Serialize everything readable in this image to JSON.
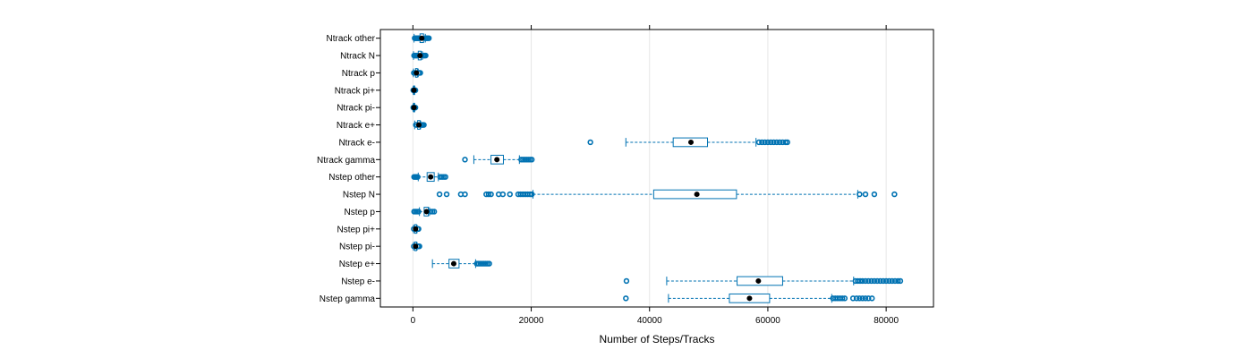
{
  "chart_data": {
    "type": "box",
    "xlabel": "Number of Steps/Tracks",
    "xlim": [
      -5500,
      88000
    ],
    "xticks": [
      0,
      20000,
      40000,
      60000,
      80000
    ],
    "xtick_labels": [
      "0",
      "20000",
      "40000",
      "60000",
      "80000"
    ],
    "grid": true,
    "colors": {
      "box": "#0072b2",
      "whisker": "#0072b2",
      "median": "#000000",
      "outlier": "#0072b2"
    },
    "categories": [
      "Ntrack other",
      "Ntrack N",
      "Ntrack p",
      "Ntrack pi+",
      "Ntrack pi-",
      "Ntrack e+",
      "Ntrack e-",
      "Ntrack gamma",
      "Nstep other",
      "Nstep N",
      "Nstep p",
      "Nstep pi+",
      "Nstep pi-",
      "Nstep e+",
      "Nstep e-",
      "Nstep gamma"
    ],
    "boxes": [
      {
        "name": "Ntrack other",
        "whisker_low": 200,
        "q1": 1200,
        "median": 1500,
        "q3": 1800,
        "whisker_high": 2100,
        "outliers": [
          300,
          450,
          600,
          750,
          900,
          1050,
          2100,
          2300,
          2500,
          2700
        ]
      },
      {
        "name": "Ntrack N",
        "whisker_low": 100,
        "q1": 900,
        "median": 1200,
        "q3": 1400,
        "whisker_high": 1600,
        "outliers": [
          200,
          350,
          500,
          650,
          800,
          1700,
          1850,
          2000,
          2150
        ]
      },
      {
        "name": "Ntrack p",
        "whisker_low": 100,
        "q1": 450,
        "median": 600,
        "q3": 750,
        "whisker_high": 900,
        "outliers": [
          150,
          300,
          950,
          1100,
          1250
        ]
      },
      {
        "name": "Ntrack pi+",
        "whisker_low": 50,
        "q1": 120,
        "median": 180,
        "q3": 240,
        "whisker_high": 300,
        "outliers": [
          60,
          330,
          420
        ]
      },
      {
        "name": "Ntrack pi-",
        "whisker_low": 50,
        "q1": 120,
        "median": 180,
        "q3": 240,
        "whisker_high": 300,
        "outliers": [
          60,
          330,
          420
        ]
      },
      {
        "name": "Ntrack e+",
        "whisker_low": 300,
        "q1": 800,
        "median": 1000,
        "q3": 1200,
        "whisker_high": 1300,
        "outliers": [
          500,
          650,
          1400,
          1550,
          1700,
          1850
        ]
      },
      {
        "name": "Ntrack e-",
        "whisker_low": 36000,
        "q1": 44000,
        "median": 47000,
        "q3": 49800,
        "whisker_high": 58000,
        "outliers": [
          30000,
          58500,
          59000,
          59500,
          60000,
          60500,
          61000,
          61500,
          62000,
          62500,
          63000,
          63300
        ]
      },
      {
        "name": "Ntrack gamma",
        "whisker_low": 10300,
        "q1": 13200,
        "median": 14200,
        "q3": 15300,
        "whisker_high": 18000,
        "outliers": [
          8800,
          18300,
          18600,
          18900,
          19200,
          19500,
          19800,
          20100
        ]
      },
      {
        "name": "Nstep other",
        "whisker_low": 900,
        "q1": 2400,
        "median": 3000,
        "q3": 3600,
        "whisker_high": 4300,
        "outliers": [
          200,
          400,
          600,
          800,
          4600,
          4900,
          5200,
          5500
        ]
      },
      {
        "name": "Nstep N",
        "whisker_low": 20300,
        "q1": 40700,
        "median": 48000,
        "q3": 54700,
        "whisker_high": 75200,
        "outliers": [
          4500,
          5700,
          8100,
          8800,
          12400,
          12800,
          13200,
          14500,
          15200,
          16400,
          17800,
          18200,
          18600,
          19000,
          19400,
          19800,
          20100,
          75500,
          76500,
          78000,
          81400
        ]
      },
      {
        "name": "Nstep p",
        "whisker_low": 1100,
        "q1": 1900,
        "median": 2300,
        "q3": 2600,
        "whisker_high": 2800,
        "outliers": [
          200,
          450,
          700,
          950,
          3000,
          3300,
          3600
        ]
      },
      {
        "name": "Nstep pi+",
        "whisker_low": 100,
        "q1": 300,
        "median": 450,
        "q3": 600,
        "whisker_high": 700,
        "outliers": [
          150,
          800,
          950
        ]
      },
      {
        "name": "Nstep pi-",
        "whisker_low": 100,
        "q1": 300,
        "median": 450,
        "q3": 600,
        "whisker_high": 700,
        "outliers": [
          150,
          800,
          950,
          1100
        ]
      },
      {
        "name": "Nstep e+",
        "whisker_low": 3300,
        "q1": 6100,
        "median": 6900,
        "q3": 7800,
        "whisker_high": 10600,
        "outliers": [
          10800,
          11100,
          11400,
          11700,
          12000,
          12300,
          12600,
          12900
        ]
      },
      {
        "name": "Nstep e-",
        "whisker_low": 42900,
        "q1": 54800,
        "median": 58400,
        "q3": 62500,
        "whisker_high": 74500,
        "outliers": [
          36100,
          74800,
          75200,
          75600,
          76000,
          76500,
          77000,
          77500,
          78000,
          78500,
          79000,
          79500,
          80000,
          80500,
          81000,
          81500,
          82000,
          82400
        ]
      },
      {
        "name": "Nstep gamma",
        "whisker_low": 43200,
        "q1": 53500,
        "median": 56900,
        "q3": 60300,
        "whisker_high": 70800,
        "outliers": [
          36000,
          71000,
          71400,
          71800,
          72200,
          72600,
          73000,
          74400,
          75000,
          75500,
          76000,
          76500,
          77000,
          77600
        ]
      }
    ]
  }
}
